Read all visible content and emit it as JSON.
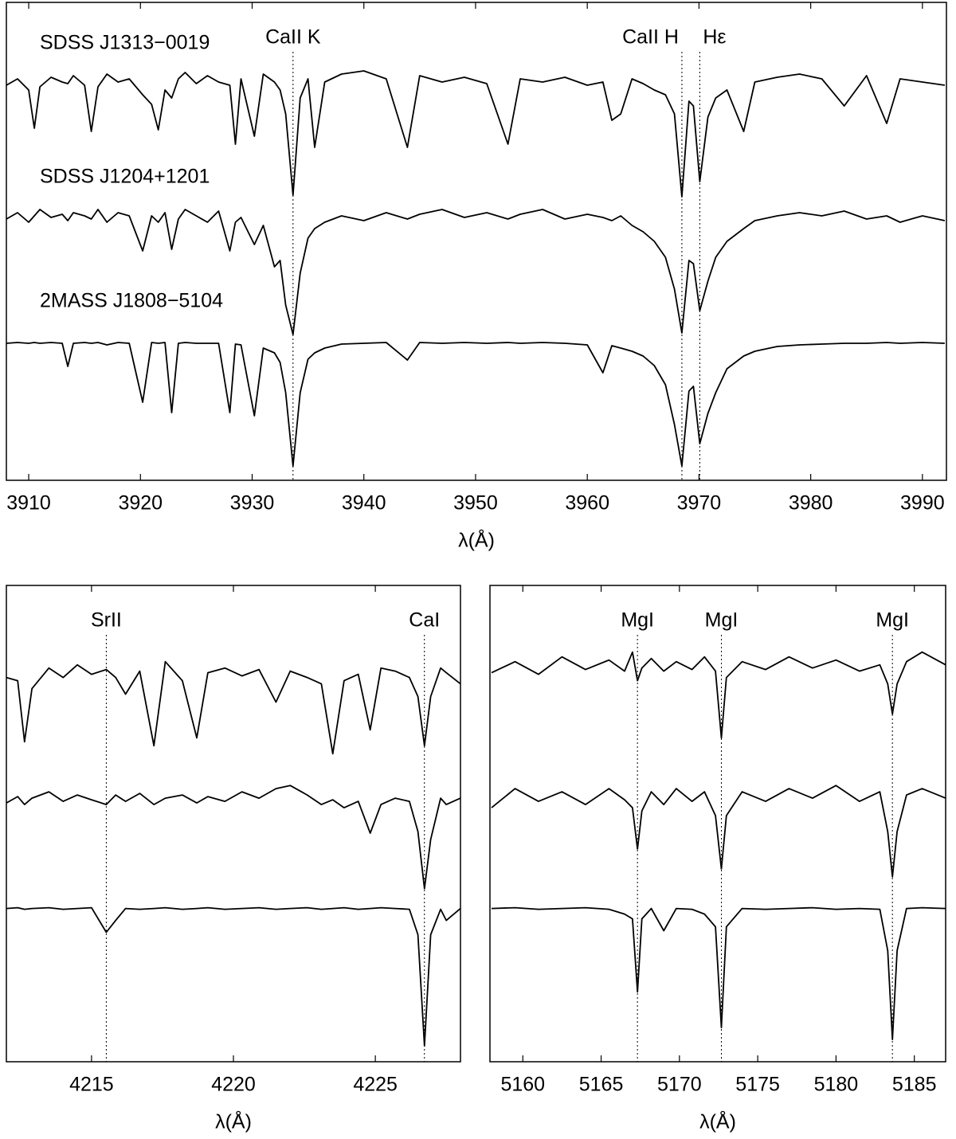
{
  "chart_data": [
    {
      "type": "line",
      "xlabel": "λ(Å)",
      "xlim": [
        3908.0,
        3992.15
      ],
      "ylim": [
        0,
        3
      ],
      "xticks": [
        3910,
        3920,
        3930,
        3940,
        3950,
        3960,
        3970,
        3980,
        3990
      ],
      "color": "#000000",
      "x": [
        3908,
        3909,
        3910,
        3910.5,
        3911,
        3912,
        3913,
        3913.5,
        3914,
        3915,
        3915.6,
        3916.2,
        3917,
        3918,
        3919,
        3920.2,
        3921,
        3921.6,
        3922.2,
        3922.8,
        3923.4,
        3924,
        3925,
        3926,
        3927,
        3928,
        3928.5,
        3929,
        3930.2,
        3931,
        3932,
        3932.5,
        3933,
        3933.66,
        3934.3,
        3935,
        3935.6,
        3936.5,
        3938,
        3940,
        3942,
        3943.9,
        3945,
        3947,
        3949,
        3951,
        3952.9,
        3954,
        3956,
        3958,
        3960,
        3961.4,
        3962.2,
        3963,
        3964,
        3965,
        3966,
        3967,
        3967.8,
        3968.47,
        3969.1,
        3969.5,
        3970.07,
        3970.8,
        3971.5,
        3972.5,
        3974,
        3975,
        3977,
        3979,
        3981,
        3983,
        3985,
        3986.8,
        3988,
        3990,
        3992
      ],
      "series": [
        {
          "name": "SDSS J1313−0019",
          "values": [
            2.48,
            2.52,
            2.45,
            2.21,
            2.47,
            2.53,
            2.5,
            2.49,
            2.54,
            2.48,
            2.19,
            2.47,
            2.55,
            2.5,
            2.52,
            2.42,
            2.36,
            2.2,
            2.45,
            2.4,
            2.52,
            2.56,
            2.49,
            2.54,
            2.5,
            2.48,
            2.11,
            2.52,
            2.16,
            2.55,
            2.5,
            2.45,
            2.3,
            1.79,
            2.4,
            2.52,
            2.09,
            2.5,
            2.55,
            2.57,
            2.52,
            2.09,
            2.54,
            2.5,
            2.53,
            2.49,
            2.11,
            2.52,
            2.5,
            2.53,
            2.48,
            2.5,
            2.26,
            2.3,
            2.52,
            2.49,
            2.45,
            2.42,
            2.3,
            1.78,
            2.38,
            2.35,
            1.875,
            2.28,
            2.4,
            2.45,
            2.19,
            2.5,
            2.53,
            2.55,
            2.52,
            2.35,
            2.54,
            2.24,
            2.52,
            2.5,
            2.48
          ]
        },
        {
          "name": "SDSS J1204+1201",
          "values": [
            1.64,
            1.68,
            1.62,
            1.66,
            1.7,
            1.65,
            1.67,
            1.63,
            1.68,
            1.66,
            1.64,
            1.7,
            1.62,
            1.68,
            1.66,
            1.44,
            1.66,
            1.62,
            1.68,
            1.45,
            1.64,
            1.7,
            1.66,
            1.62,
            1.69,
            1.44,
            1.62,
            1.65,
            1.48,
            1.6,
            1.34,
            1.38,
            1.1,
            0.915,
            1.3,
            1.52,
            1.58,
            1.62,
            1.66,
            1.63,
            1.68,
            1.64,
            1.67,
            1.7,
            1.65,
            1.68,
            1.64,
            1.67,
            1.7,
            1.64,
            1.67,
            1.65,
            1.63,
            1.66,
            1.6,
            1.56,
            1.5,
            1.4,
            1.2,
            0.925,
            1.38,
            1.36,
            1.065,
            1.25,
            1.4,
            1.5,
            1.58,
            1.63,
            1.66,
            1.68,
            1.66,
            1.69,
            1.64,
            1.66,
            1.62,
            1.66,
            1.63
          ]
        },
        {
          "name": "2MASS J1808−5104",
          "values": [
            0.86,
            0.865,
            0.86,
            0.865,
            0.86,
            0.865,
            0.86,
            0.715,
            0.86,
            0.865,
            0.86,
            0.865,
            0.85,
            0.865,
            0.86,
            0.49,
            0.865,
            0.86,
            0.865,
            0.425,
            0.86,
            0.865,
            0.86,
            0.86,
            0.86,
            0.425,
            0.855,
            0.85,
            0.405,
            0.83,
            0.8,
            0.74,
            0.55,
            0.09,
            0.55,
            0.76,
            0.8,
            0.83,
            0.855,
            0.86,
            0.865,
            0.755,
            0.865,
            0.86,
            0.865,
            0.86,
            0.865,
            0.86,
            0.865,
            0.86,
            0.85,
            0.675,
            0.845,
            0.83,
            0.81,
            0.78,
            0.72,
            0.6,
            0.35,
            0.09,
            0.56,
            0.59,
            0.23,
            0.42,
            0.55,
            0.7,
            0.78,
            0.81,
            0.84,
            0.85,
            0.855,
            0.86,
            0.86,
            0.865,
            0.86,
            0.865,
            0.86
          ]
        }
      ],
      "lines": [
        {
          "label": "CaII K",
          "x": 3933.66
        },
        {
          "label": "CaII H",
          "x": 3968.47
        },
        {
          "label": "Hε",
          "x": 3970.07
        }
      ]
    },
    {
      "type": "line",
      "xlabel": "λ(Å)",
      "xlim": [
        4212.0,
        4228.0
      ],
      "ylim": [
        0,
        3
      ],
      "xticks": [
        4215,
        4220,
        4225
      ],
      "color": "#000000",
      "x": [
        4212,
        4212.4,
        4212.64,
        4212.9,
        4213.5,
        4214,
        4214.5,
        4215,
        4215.52,
        4215.85,
        4216.2,
        4216.7,
        4217.2,
        4217.6,
        4218.2,
        4218.71,
        4219.1,
        4219.7,
        4220.3,
        4220.9,
        4221.5,
        4222,
        4222.6,
        4223.1,
        4223.5,
        4223.9,
        4224.4,
        4224.82,
        4225.2,
        4225.7,
        4226.2,
        4226.5,
        4226.73,
        4226.95,
        4227.3,
        4227.5,
        4228
      ],
      "series": [
        {
          "values": [
            2.42,
            2.4,
            2.015,
            2.35,
            2.48,
            2.42,
            2.5,
            2.44,
            2.47,
            2.42,
            2.315,
            2.46,
            1.99,
            2.52,
            2.4,
            2.04,
            2.45,
            2.48,
            2.43,
            2.47,
            2.265,
            2.46,
            2.42,
            2.38,
            1.94,
            2.4,
            2.44,
            2.09,
            2.48,
            2.46,
            2.42,
            2.3,
            1.99,
            2.3,
            2.48,
            2.45,
            2.38
          ]
        },
        {
          "values": [
            1.63,
            1.67,
            1.62,
            1.66,
            1.7,
            1.64,
            1.68,
            1.65,
            1.62,
            1.68,
            1.64,
            1.69,
            1.62,
            1.66,
            1.68,
            1.63,
            1.67,
            1.64,
            1.7,
            1.66,
            1.72,
            1.74,
            1.68,
            1.62,
            1.65,
            1.6,
            1.64,
            1.44,
            1.62,
            1.66,
            1.64,
            1.45,
            1.09,
            1.4,
            1.66,
            1.62,
            1.66
          ]
        },
        {
          "values": [
            0.965,
            0.97,
            0.96,
            0.965,
            0.97,
            0.96,
            0.965,
            0.97,
            0.815,
            0.89,
            0.965,
            0.96,
            0.965,
            0.97,
            0.96,
            0.965,
            0.97,
            0.96,
            0.965,
            0.97,
            0.96,
            0.965,
            0.97,
            0.96,
            0.965,
            0.97,
            0.96,
            0.965,
            0.97,
            0.965,
            0.96,
            0.8,
            0.1,
            0.8,
            0.96,
            0.89,
            0.965
          ]
        }
      ],
      "lines": [
        {
          "label": "SrII",
          "x": 4215.52
        },
        {
          "label": "CaI",
          "x": 4226.73
        }
      ]
    },
    {
      "type": "line",
      "xlabel": "λ(Å)",
      "xlim": [
        5157.9,
        5187.0
      ],
      "ylim": [
        0,
        3
      ],
      "xticks": [
        5160,
        5165,
        5170,
        5175,
        5180,
        5185
      ],
      "color": "#000000",
      "x": [
        5158,
        5159.5,
        5161,
        5162.5,
        5164,
        5165.5,
        5166.5,
        5167.0,
        5167.32,
        5167.6,
        5168.2,
        5169.0,
        5169.8,
        5170.8,
        5171.6,
        5172.3,
        5172.68,
        5173.0,
        5174,
        5175.5,
        5177,
        5178.5,
        5180,
        5181.5,
        5182.8,
        5183.3,
        5183.6,
        5183.9,
        5184.5,
        5185.5,
        5187
      ],
      "series": [
        {
          "values": [
            2.45,
            2.52,
            2.44,
            2.55,
            2.47,
            2.53,
            2.46,
            2.58,
            2.4,
            2.48,
            2.54,
            2.46,
            2.52,
            2.47,
            2.55,
            2.46,
            2.04,
            2.42,
            2.52,
            2.47,
            2.55,
            2.48,
            2.53,
            2.46,
            2.5,
            2.38,
            2.19,
            2.38,
            2.52,
            2.58,
            2.5
          ]
        },
        {
          "values": [
            1.6,
            1.72,
            1.64,
            1.7,
            1.62,
            1.72,
            1.65,
            1.6,
            1.34,
            1.58,
            1.7,
            1.62,
            1.72,
            1.64,
            1.7,
            1.55,
            1.215,
            1.55,
            1.7,
            1.64,
            1.72,
            1.66,
            1.74,
            1.64,
            1.7,
            1.45,
            1.165,
            1.45,
            1.68,
            1.72,
            1.66
          ]
        },
        {
          "values": [
            0.965,
            0.97,
            0.96,
            0.965,
            0.97,
            0.96,
            0.93,
            0.9,
            0.44,
            0.9,
            0.965,
            0.825,
            0.965,
            0.96,
            0.93,
            0.85,
            0.215,
            0.85,
            0.965,
            0.96,
            0.965,
            0.97,
            0.96,
            0.965,
            0.96,
            0.7,
            0.14,
            0.7,
            0.965,
            0.97,
            0.965
          ]
        }
      ],
      "lines": [
        {
          "label": "MgI",
          "x": 5167.32
        },
        {
          "label": "MgI",
          "x": 5172.68
        },
        {
          "label": "MgI",
          "x": 5183.6
        }
      ]
    }
  ]
}
